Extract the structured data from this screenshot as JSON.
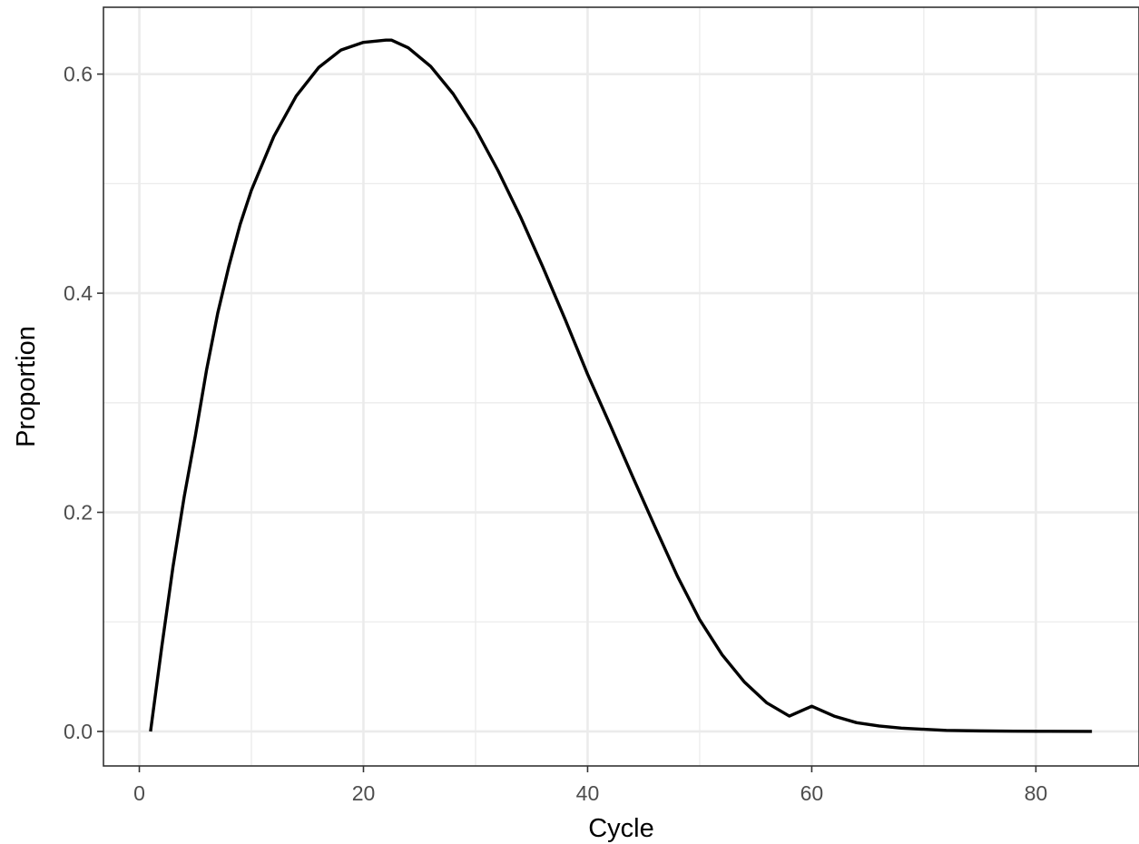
{
  "chart_data": {
    "type": "line",
    "title": "",
    "xlabel": "Cycle",
    "ylabel": "Proportion",
    "xlim": [
      -3.2,
      89.2
    ],
    "ylim": [
      -0.0315,
      0.661
    ],
    "x_ticks": [
      {
        "value": 0,
        "label": "0"
      },
      {
        "value": 20,
        "label": "20"
      },
      {
        "value": 40,
        "label": "40"
      },
      {
        "value": 60,
        "label": "60"
      },
      {
        "value": 80,
        "label": "80"
      }
    ],
    "x_minor_ticks": [
      10,
      30,
      50,
      70
    ],
    "y_ticks": [
      {
        "value": 0.0,
        "label": "0.0"
      },
      {
        "value": 0.2,
        "label": "0.2"
      },
      {
        "value": 0.4,
        "label": "0.4"
      },
      {
        "value": 0.6,
        "label": "0.6"
      }
    ],
    "y_minor_ticks": [
      0.1,
      0.3,
      0.5
    ],
    "grid": true,
    "legend": "none",
    "series": [
      {
        "color": "#000000",
        "x": [
          1,
          2,
          3,
          4,
          5,
          6,
          7,
          8,
          9,
          10,
          12,
          14,
          16,
          18,
          20,
          22,
          22.5,
          24,
          26,
          28,
          30,
          32,
          34,
          36,
          38,
          40,
          42,
          44,
          46,
          48,
          50,
          52,
          54,
          56,
          58,
          60,
          62,
          64,
          66,
          68,
          70,
          72,
          75,
          78,
          81,
          85
        ],
        "y": [
          0.0,
          0.077,
          0.15,
          0.214,
          0.27,
          0.33,
          0.382,
          0.425,
          0.463,
          0.494,
          0.543,
          0.58,
          0.606,
          0.622,
          0.629,
          0.631,
          0.631,
          0.624,
          0.607,
          0.582,
          0.55,
          0.512,
          0.47,
          0.424,
          0.376,
          0.326,
          0.28,
          0.233,
          0.187,
          0.142,
          0.102,
          0.07,
          0.045,
          0.026,
          0.014,
          0.023,
          0.014,
          0.008,
          0.005,
          0.003,
          0.002,
          0.001,
          0.0005,
          0.0002,
          0.0001,
          0.0
        ]
      }
    ]
  }
}
